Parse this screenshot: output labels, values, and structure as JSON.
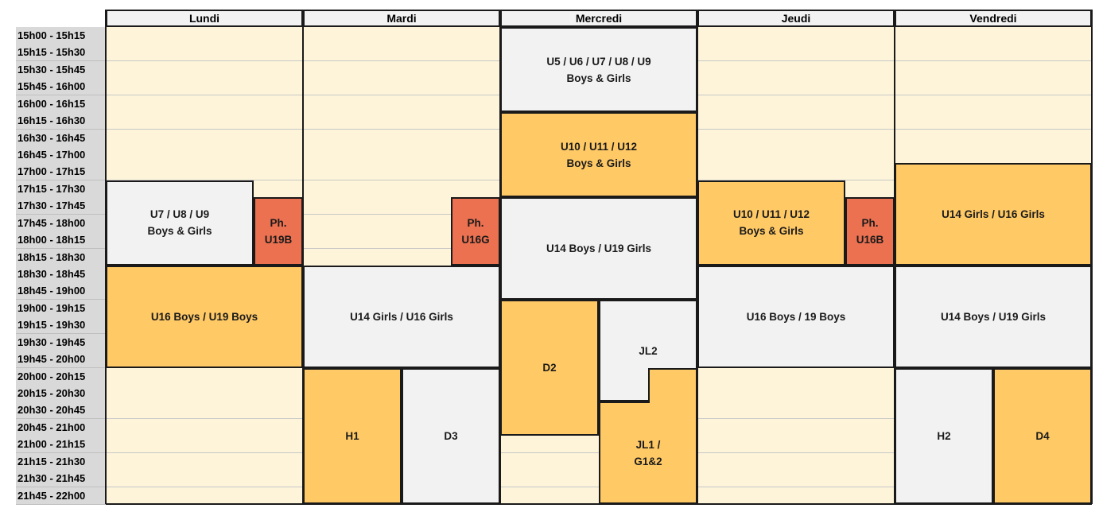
{
  "days": [
    "Lundi",
    "Mardi",
    "Mercredi",
    "Jeudi",
    "Vendredi"
  ],
  "times": [
    "15h00 - 15h15",
    "15h15 - 15h30",
    "15h30 - 15h45",
    "15h45 - 16h00",
    "16h00 - 16h15",
    "16h15 - 16h30",
    "16h30 - 16h45",
    "16h45 - 17h00",
    "17h00 - 17h15",
    "17h15 - 17h30",
    "17h30 - 17h45",
    "17h45 - 18h00",
    "18h00 - 18h15",
    "18h15 - 18h30",
    "18h30 - 18h45",
    "18h45 - 19h00",
    "19h00 - 19h15",
    "19h15 - 19h30",
    "19h30 - 19h45",
    "19h45 - 20h00",
    "20h00 - 20h15",
    "20h15 - 20h30",
    "20h30 - 20h45",
    "20h45 - 21h00",
    "21h00 - 21h15",
    "21h15 - 21h30",
    "21h30 - 21h45",
    "21h45 - 22h00"
  ],
  "colors": {
    "gray": "#f2f2f2",
    "orange": "#ffc966",
    "red": "#ec7150",
    "empty": "#fdf4d9",
    "time_bg": "#d9d9d9"
  },
  "blocks": [
    {
      "id": "lundi-u7-u9",
      "label": "U7 / U8 / U9\nBoys & Girls",
      "color": "gray"
    },
    {
      "id": "lundi-ph-u19b",
      "label": "Ph.\nU19B",
      "color": "red"
    },
    {
      "id": "lundi-u16-u19-boys",
      "label": "U16 Boys / U19 Boys",
      "color": "orange"
    },
    {
      "id": "mardi-ph-u16g",
      "label": "Ph.\nU16G",
      "color": "red"
    },
    {
      "id": "mardi-u14-u16-girls",
      "label": "U14 Girls / U16 Girls",
      "color": "gray"
    },
    {
      "id": "mardi-h1",
      "label": "H1",
      "color": "orange"
    },
    {
      "id": "mardi-d3",
      "label": "D3",
      "color": "gray"
    },
    {
      "id": "mercredi-u5-u9",
      "label": "U5 / U6 / U7 / U8 / U9\nBoys & Girls",
      "color": "gray"
    },
    {
      "id": "mercredi-u10-u12",
      "label": "U10 / U11 / U12\nBoys & Girls",
      "color": "orange"
    },
    {
      "id": "mercredi-u14b-u19g",
      "label": "U14 Boys / U19 Girls",
      "color": "gray"
    },
    {
      "id": "mercredi-d2",
      "label": "D2",
      "color": "orange"
    },
    {
      "id": "mercredi-jl2",
      "label": "JL2",
      "color": "gray"
    },
    {
      "id": "mercredi-jl1-g12",
      "label": "JL1 /\nG1&2",
      "color": "orange"
    },
    {
      "id": "jeudi-u10-u12",
      "label": "U10 / U11 / U12\nBoys & Girls",
      "color": "orange"
    },
    {
      "id": "jeudi-ph-u16b",
      "label": "Ph.\nU16B",
      "color": "red"
    },
    {
      "id": "jeudi-u16-19-boys",
      "label": "U16 Boys / 19 Boys",
      "color": "gray"
    },
    {
      "id": "vendredi-u14-u16-girls",
      "label": "U14 Girls / U16 Girls",
      "color": "orange"
    },
    {
      "id": "vendredi-u14b-u19g",
      "label": "U14 Boys / U19 Girls",
      "color": "gray"
    },
    {
      "id": "vendredi-h2",
      "label": "H2",
      "color": "gray"
    },
    {
      "id": "vendredi-d4",
      "label": "D4",
      "color": "orange"
    }
  ]
}
